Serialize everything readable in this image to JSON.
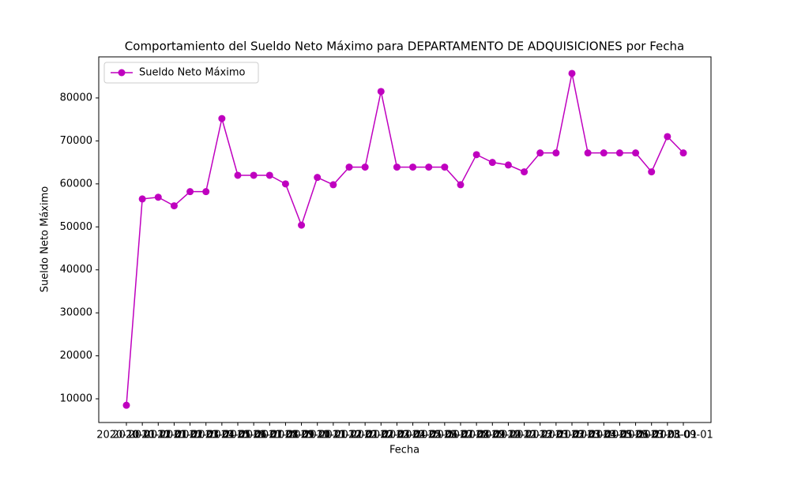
{
  "chart_data": {
    "type": "line",
    "title": "Comportamiento del Sueldo Neto Máximo para DEPARTAMENTO DE ADQUISICIONES por Fecha",
    "x_label": "Fecha",
    "y_label": "Sueldo Neto Máximo",
    "categories": [
      "2020-10-01",
      "2020-11-01",
      "2020-12-01",
      "2021-01-01",
      "2021-02-01",
      "2021-03-01",
      "2021-04-01",
      "2021-05-01",
      "2021-06-01",
      "2021-07-01",
      "2021-08-01",
      "2021-09-01",
      "2021-10-01",
      "2021-11-01",
      "2021-12-01",
      "2022-01-01",
      "2022-02-01",
      "2022-03-01",
      "2022-04-01",
      "2022-05-01",
      "2022-06-01",
      "2022-07-01",
      "2022-08-01",
      "2022-09-01",
      "2022-10-01",
      "2022-11-01",
      "2022-12-01",
      "2023-01-01",
      "2023-02-01",
      "2023-03-01",
      "2023-04-01",
      "2023-05-01",
      "2023-06-01",
      "2023-07-01",
      "2023-08-01",
      "2023-09-01"
    ],
    "series": [
      {
        "name": "Sueldo Neto Máximo",
        "color": "#bf00bf",
        "values": [
          8500,
          56500,
          56900,
          54900,
          58200,
          58200,
          75200,
          62000,
          62000,
          62000,
          60000,
          50400,
          61500,
          59800,
          63900,
          63900,
          81500,
          63900,
          63900,
          63900,
          63900,
          59800,
          66800,
          65000,
          64400,
          62800,
          67200,
          67200,
          85700,
          67200,
          67200,
          67200,
          67200,
          62800,
          71000,
          67200
        ]
      }
    ],
    "ylim": [
      4490,
      89550
    ],
    "yticks": [
      10000,
      20000,
      30000,
      40000,
      50000,
      60000,
      70000,
      80000
    ],
    "legend": "upper left"
  }
}
